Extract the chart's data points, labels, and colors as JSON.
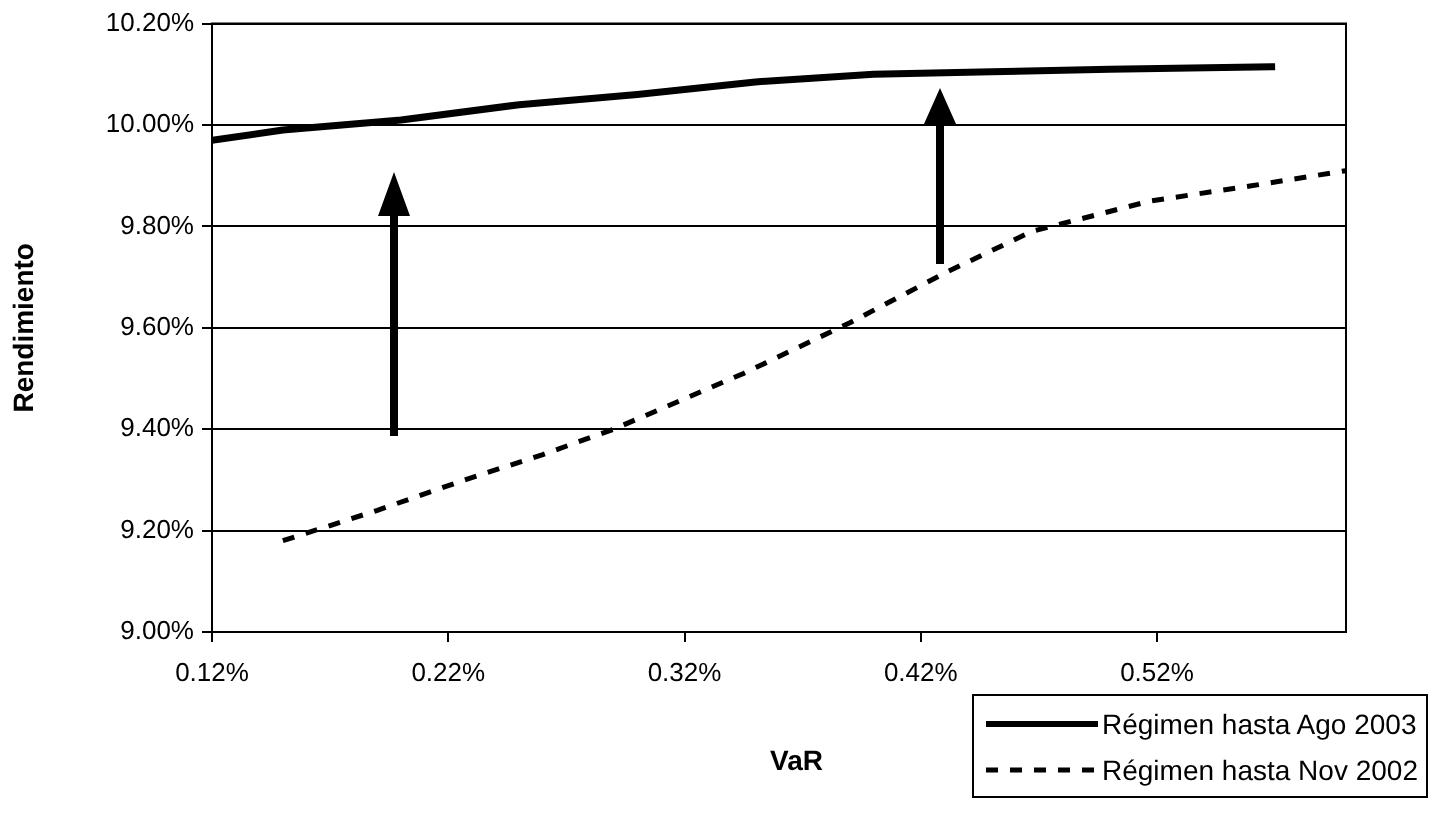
{
  "chart_data": {
    "type": "line",
    "xlabel": "VaR",
    "ylabel": "Rendimiento",
    "xlim": [
      0.12,
      0.6
    ],
    "xticks": [
      {
        "value": 0.12,
        "label": "0.12%"
      },
      {
        "value": 0.22,
        "label": "0.22%"
      },
      {
        "value": 0.32,
        "label": "0.32%"
      },
      {
        "value": 0.42,
        "label": "0.42%"
      },
      {
        "value": 0.52,
        "label": "0.52%"
      }
    ],
    "ylim": [
      9.0,
      10.2
    ],
    "yticks": [
      {
        "value": 9.0,
        "label": "9.00%"
      },
      {
        "value": 9.2,
        "label": "9.20%"
      },
      {
        "value": 9.4,
        "label": "9.40%"
      },
      {
        "value": 9.6,
        "label": "9.60%"
      },
      {
        "value": 9.8,
        "label": "9.80%"
      },
      {
        "value": 10.0,
        "label": "10.00%"
      },
      {
        "value": 10.2,
        "label": "10.20%"
      }
    ],
    "grid": "y",
    "legend": "bottom right",
    "marker": "none",
    "series": [
      {
        "name": "Régimen hasta Ago 2003",
        "color": "#000000",
        "line_style": "solid",
        "x": [
          0.12,
          0.15,
          0.2,
          0.25,
          0.3,
          0.35,
          0.4,
          0.45,
          0.5,
          0.57
        ],
        "values": [
          9.97,
          9.99,
          10.01,
          10.04,
          10.06,
          10.085,
          10.1,
          10.105,
          10.11,
          10.115
        ]
      },
      {
        "name": "Régimen hasta Nov 2002",
        "color": "#000000",
        "line_style": "dashed",
        "x": [
          0.15,
          0.19,
          0.227,
          0.26,
          0.29,
          0.345,
          0.39,
          0.431,
          0.467,
          0.517,
          0.56,
          0.6
        ],
        "values": [
          9.18,
          9.24,
          9.3,
          9.35,
          9.4,
          9.51,
          9.61,
          9.71,
          9.79,
          9.85,
          9.88,
          9.91
        ]
      }
    ]
  }
}
